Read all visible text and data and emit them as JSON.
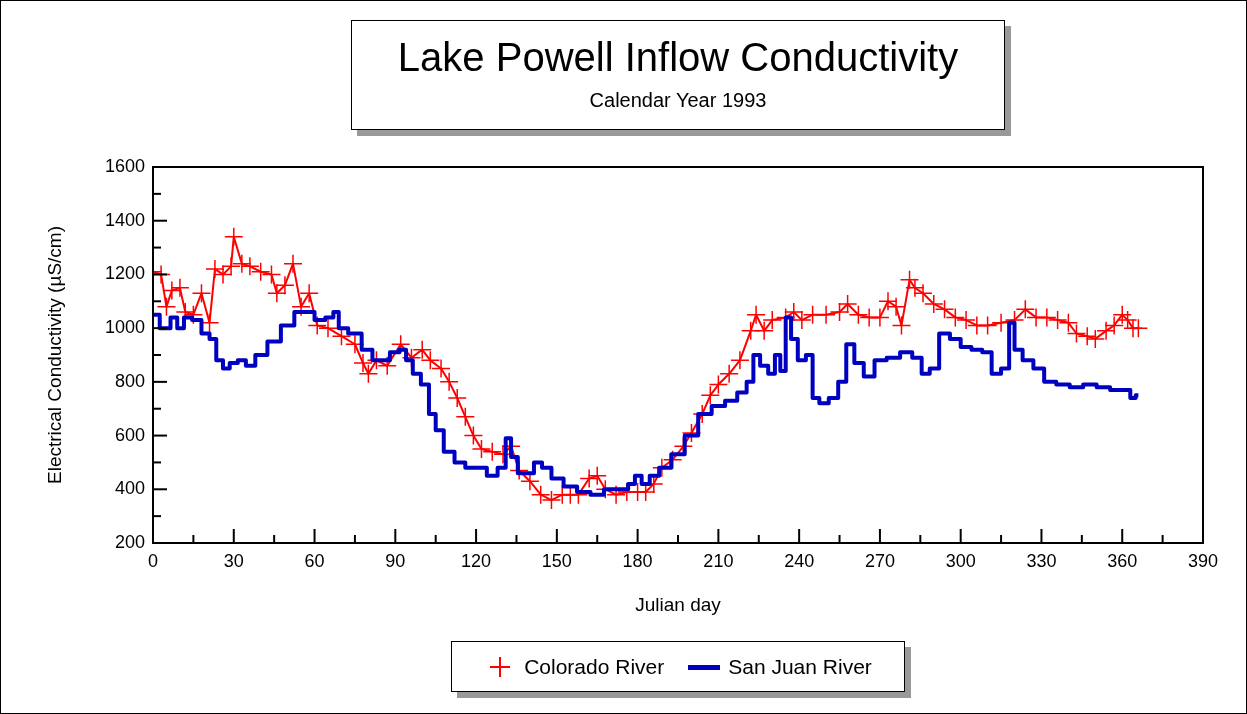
{
  "chart_data": {
    "type": "line",
    "title": "Lake Powell Inflow Conductivity",
    "subtitle": "Calendar Year 1993",
    "xlabel": "Julian day",
    "ylabel": "Electrical Conductivity (µS/cm)",
    "xlim": [
      0,
      390
    ],
    "xticks": [
      0,
      {
        "value": 15,
        "label": null
      },
      30,
      {
        "value": 45,
        "label": null
      },
      60,
      {
        "value": 75,
        "label": null
      },
      90,
      {
        "value": 105,
        "label": null
      },
      120,
      {
        "value": 135,
        "label": null
      },
      150,
      {
        "value": 165,
        "label": null
      },
      180,
      {
        "value": 195,
        "label": null
      },
      210,
      {
        "value": 225,
        "label": null
      },
      240,
      {
        "value": 255,
        "label": null
      },
      270,
      {
        "value": 285,
        "label": null
      },
      300,
      {
        "value": 315,
        "label": null
      },
      330,
      {
        "value": 345,
        "label": null
      },
      360,
      {
        "value": 375,
        "label": null
      },
      390
    ],
    "ylim": [
      200,
      1600
    ],
    "yticks": [
      200,
      {
        "value": 300,
        "label": null
      },
      400,
      {
        "value": 500,
        "label": null
      },
      600,
      {
        "value": 700,
        "label": null
      },
      800,
      {
        "value": 900,
        "label": null
      },
      1000,
      {
        "value": 1100,
        "label": null
      },
      1200,
      {
        "value": 1300,
        "label": null
      },
      1400,
      {
        "value": 1500,
        "label": null
      },
      1600
    ],
    "grid": false,
    "legend": "bottom",
    "series": [
      {
        "name": "Colorado River",
        "color": "#ff0000",
        "type": "line",
        "marker": "cross",
        "x": [
          0,
          3,
          5,
          7,
          10,
          12,
          15,
          18,
          21,
          23,
          26,
          29,
          30,
          33,
          36,
          40,
          44,
          46,
          49,
          52,
          55,
          58,
          61,
          65,
          70,
          75,
          78,
          80,
          83,
          87,
          92,
          96,
          100,
          103,
          107,
          110,
          113,
          116,
          119,
          122,
          126,
          130,
          133,
          136,
          140,
          144,
          148,
          152,
          155,
          158,
          162,
          165,
          168,
          172,
          176,
          180,
          183,
          186,
          189,
          193,
          197,
          200,
          204,
          207,
          210,
          214,
          218,
          222,
          224,
          227,
          230,
          235,
          238,
          241,
          245,
          250,
          255,
          258,
          262,
          266,
          270,
          273,
          276,
          278,
          281,
          283,
          286,
          290,
          294,
          298,
          302,
          306,
          310,
          315,
          320,
          324,
          328,
          332,
          336,
          340,
          343,
          347,
          350,
          354,
          357,
          360,
          362,
          364,
          366
        ],
        "values": [
          1210,
          1200,
          1080,
          1140,
          1150,
          1060,
          1050,
          1130,
          1020,
          1220,
          1200,
          1230,
          1340,
          1240,
          1230,
          1210,
          1200,
          1130,
          1160,
          1240,
          1080,
          1130,
          1010,
          1000,
          970,
          940,
          870,
          830,
          880,
          860,
          940,
          890,
          920,
          880,
          850,
          800,
          740,
          670,
          600,
          550,
          540,
          530,
          560,
          470,
          430,
          380,
          360,
          380,
          380,
          380,
          440,
          450,
          400,
          380,
          390,
          390,
          390,
          420,
          480,
          510,
          560,
          610,
          680,
          750,
          790,
          830,
          880,
          990,
          1050,
          990,
          1030,
          1040,
          1060,
          1030,
          1050,
          1050,
          1060,
          1090,
          1050,
          1040,
          1040,
          1100,
          1080,
          1010,
          1180,
          1150,
          1130,
          1090,
          1070,
          1040,
          1030,
          1010,
          1010,
          1020,
          1030,
          1070,
          1040,
          1040,
          1030,
          1020,
          980,
          970,
          960,
          990,
          1010,
          1050,
          1030,
          1000,
          1000
        ]
      },
      {
        "name": "San Juan River",
        "color": "#0000c0",
        "type": "step",
        "marker": "none",
        "x": [
          0,
          5,
          8,
          10,
          13,
          16,
          20,
          22,
          25,
          27,
          30,
          33,
          36,
          40,
          45,
          50,
          55,
          58,
          62,
          66,
          68,
          70,
          75,
          80,
          83,
          86,
          90,
          93,
          95,
          98,
          101,
          104,
          106,
          110,
          114,
          118,
          122,
          126,
          130,
          132,
          134,
          137,
          140,
          143,
          146,
          150,
          155,
          160,
          165,
          170,
          175,
          178,
          180,
          183,
          186,
          190,
          195,
          200,
          205,
          210,
          215,
          219,
          222,
          224,
          227,
          230,
          232,
          234,
          236,
          238,
          241,
          244,
          246,
          249,
          253,
          256,
          259,
          262,
          266,
          270,
          275,
          280,
          284,
          287,
          290,
          294,
          298,
          302,
          306,
          310,
          313,
          317,
          319,
          321,
          325,
          329,
          333,
          338,
          343,
          348,
          353,
          358,
          362,
          364,
          366
        ],
        "values": [
          1050,
          1000,
          1040,
          1000,
          1040,
          1030,
          980,
          960,
          880,
          850,
          870,
          880,
          860,
          900,
          950,
          1010,
          1060,
          1060,
          1030,
          1040,
          1060,
          1000,
          980,
          920,
          880,
          880,
          910,
          920,
          880,
          830,
          790,
          680,
          620,
          540,
          500,
          480,
          480,
          450,
          480,
          590,
          520,
          460,
          460,
          500,
          480,
          440,
          410,
          390,
          380,
          400,
          400,
          420,
          450,
          420,
          450,
          480,
          530,
          600,
          680,
          710,
          730,
          760,
          800,
          900,
          860,
          830,
          900,
          840,
          1040,
          960,
          880,
          900,
          740,
          720,
          740,
          800,
          940,
          870,
          820,
          880,
          890,
          910,
          890,
          830,
          850,
          980,
          960,
          930,
          920,
          910,
          830,
          850,
          1020,
          920,
          880,
          850,
          800,
          790,
          780,
          790,
          780,
          770,
          770,
          740,
          750
        ]
      }
    ]
  }
}
